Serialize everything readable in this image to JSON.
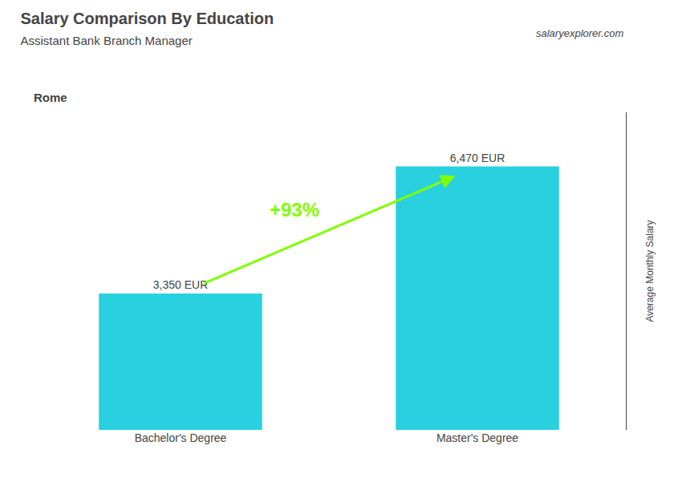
{
  "chart_data": {
    "type": "bar",
    "title": "Salary Comparison By Education",
    "subtitle": "Assistant Bank Branch Manager",
    "ylabel": "Average Monthly Salary",
    "categories": [
      "Bachelor's Degree",
      "Master's Degree"
    ],
    "values": [
      3350,
      6470
    ],
    "value_labels": [
      "3,350 EUR",
      "6,470 EUR"
    ],
    "data_labels": true,
    "color": "#29d0e0",
    "ylim": [
      0,
      7800
    ],
    "tick_labels": "x",
    "grid": false,
    "annotations": [
      {
        "text": "Rome"
      },
      {
        "text": "salaryexplorer.com"
      },
      {
        "text": "+93%",
        "color": "#80ff00"
      }
    ]
  }
}
